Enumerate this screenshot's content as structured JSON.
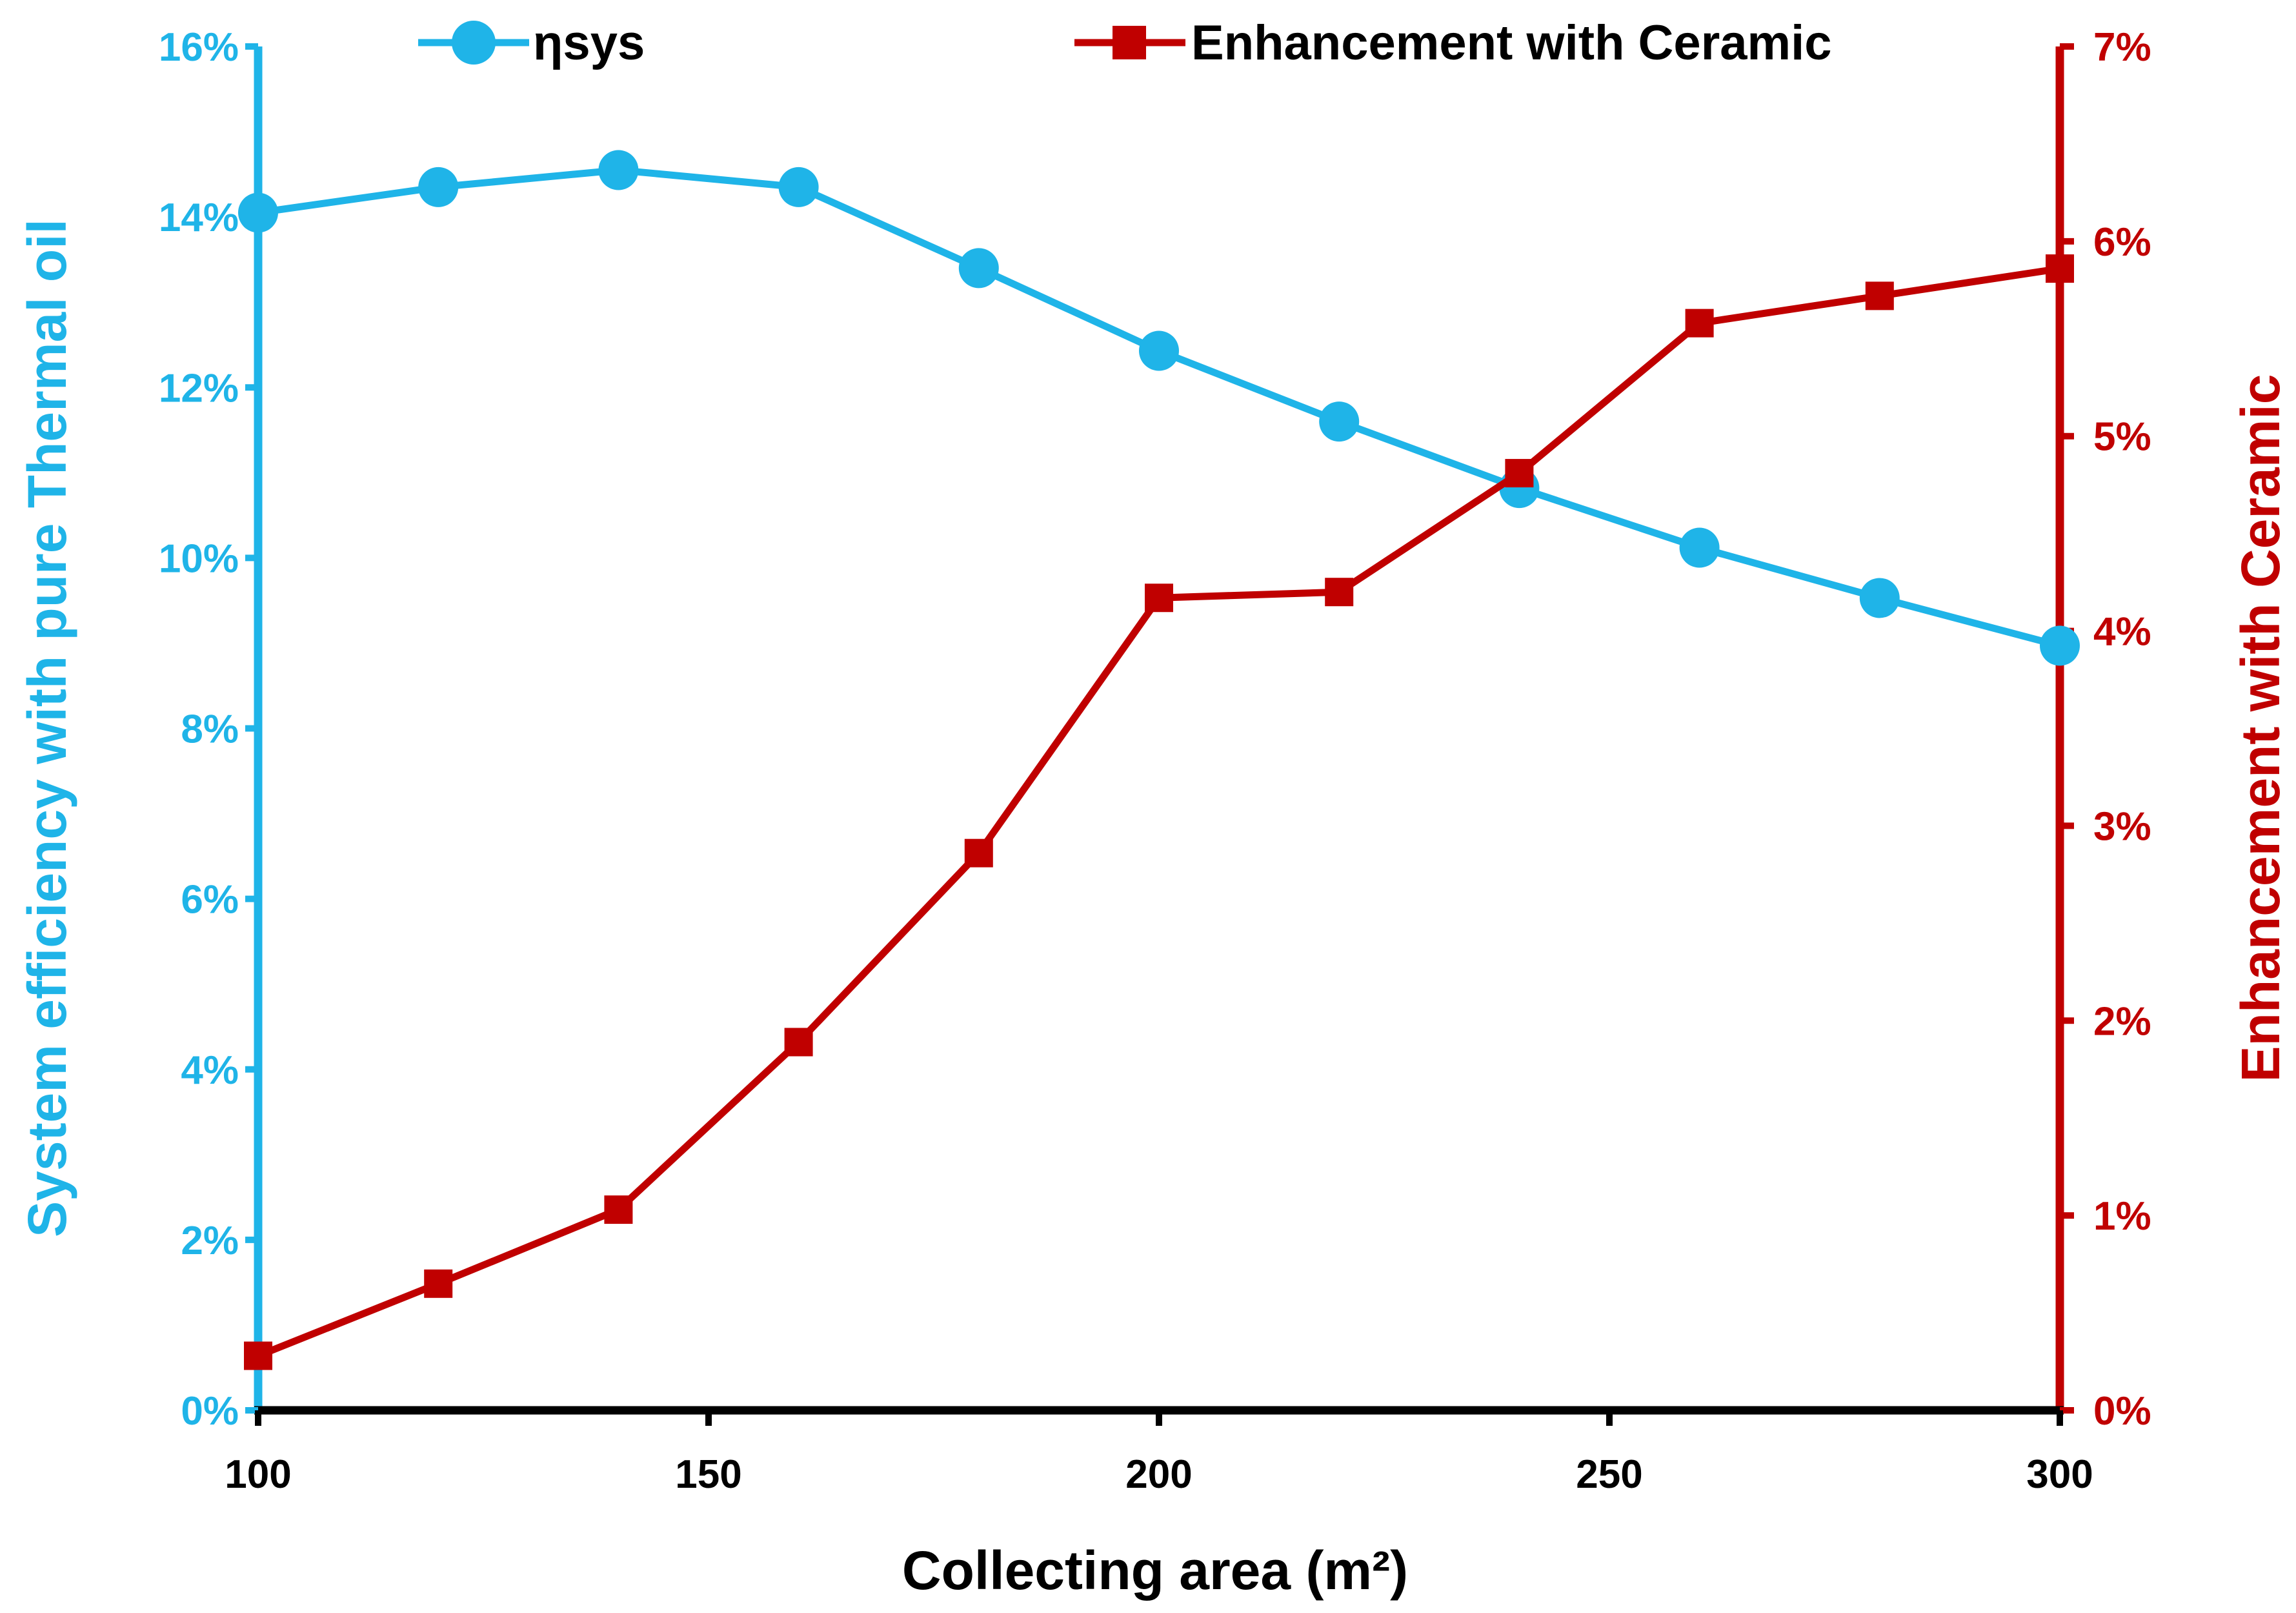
{
  "chart_data": {
    "type": "line",
    "xlabel": "Collecting area (m²)",
    "x": [
      100,
      120,
      140,
      160,
      180,
      200,
      220,
      240,
      260,
      280,
      300
    ],
    "xlim": [
      100,
      300
    ],
    "xticks": [
      "100",
      "150",
      "200",
      "250",
      "300"
    ],
    "ylabel_left": "System efficiency with pure Thermal oil",
    "ylim_left": [
      0,
      16
    ],
    "yticks_left": [
      "0%",
      "2%",
      "4%",
      "6%",
      "8%",
      "10%",
      "12%",
      "14%",
      "16%"
    ],
    "ylabel_right": "Enhancement with Ceramic",
    "ylim_right": [
      0,
      7
    ],
    "yticks_right": [
      "0%",
      "1%",
      "2%",
      "3%",
      "4%",
      "5%",
      "6%",
      "7%"
    ],
    "series": [
      {
        "name": "ηsys",
        "axis": "left",
        "marker": "circle",
        "color": "#1FB4E8",
        "values": [
          14.05,
          14.35,
          14.55,
          14.35,
          13.4,
          12.43,
          11.6,
          10.82,
          10.12,
          9.53,
          8.97
        ]
      },
      {
        "name": "Enhancement with Ceramic",
        "axis": "right",
        "marker": "square",
        "color": "#C00000",
        "values": [
          0.28,
          0.65,
          1.03,
          1.89,
          2.86,
          4.17,
          4.2,
          4.81,
          5.58,
          5.72,
          5.86
        ]
      }
    ],
    "legend_position": "top",
    "grid": false
  },
  "colors": {
    "left_axis": "#1FB4E8",
    "right_axis": "#C00000",
    "bottom_axis": "#000000"
  }
}
